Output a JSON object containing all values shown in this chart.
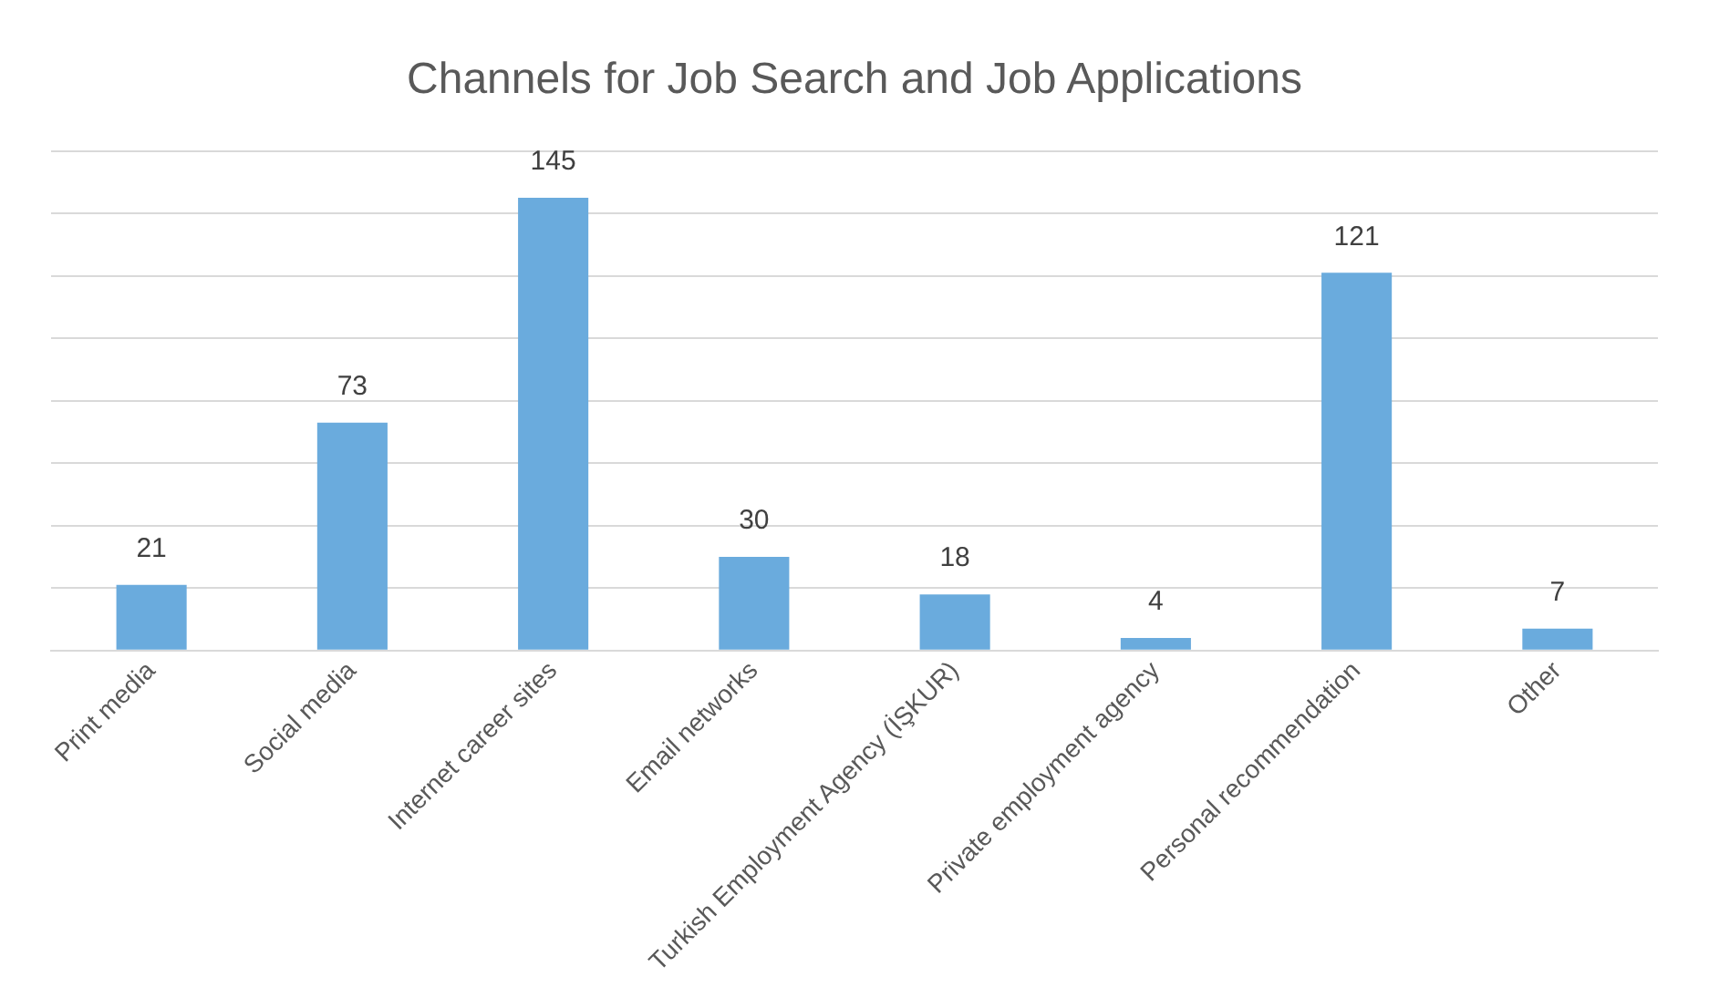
{
  "chart_data": {
    "type": "bar",
    "title": "Channels for Job Search and Job Applications",
    "categories": [
      "Print media",
      "Social media",
      "Internet career sites",
      "Email networks",
      "Turkish Employment Agency (İŞKUR)",
      "Private employment agency",
      "Personal recommendation",
      "Other"
    ],
    "values": [
      21,
      73,
      145,
      30,
      18,
      4,
      121,
      7
    ],
    "color": "#6aabdd",
    "data_labels": true,
    "ylim": [
      0,
      160
    ],
    "yticks": [
      {
        "value": 0,
        "label": null
      },
      {
        "value": 20,
        "label": null
      },
      {
        "value": 40,
        "label": null
      },
      {
        "value": 60,
        "label": null
      },
      {
        "value": 80,
        "label": null
      },
      {
        "value": 100,
        "label": null
      },
      {
        "value": 120,
        "label": null
      },
      {
        "value": 140,
        "label": null
      },
      {
        "value": 160,
        "label": null
      }
    ],
    "grid": "y",
    "tick_labels": "x",
    "legend": false
  }
}
